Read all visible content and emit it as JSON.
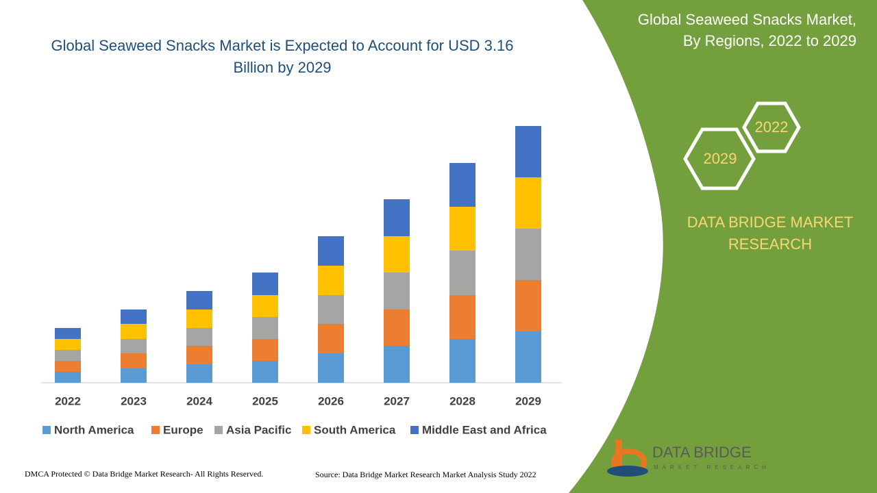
{
  "chart_data": {
    "type": "stacked-bar",
    "title": "Global Seaweed Snacks Market is Expected to Account for USD 3.16 Billion by 2029",
    "categories": [
      "2022",
      "2023",
      "2024",
      "2025",
      "2026",
      "2027",
      "2028",
      "2029"
    ],
    "series": [
      {
        "name": "North America",
        "color": "#5b9bd5",
        "values": [
          16,
          21,
          27,
          32,
          43,
          54,
          64,
          75
        ]
      },
      {
        "name": "Europe",
        "color": "#ed7d31",
        "values": [
          16,
          22,
          27,
          32,
          43,
          53,
          64,
          75
        ]
      },
      {
        "name": "Asia Pacific",
        "color": "#a5a5a5",
        "values": [
          16,
          21,
          26,
          32,
          42,
          54,
          65,
          75
        ]
      },
      {
        "name": "South America",
        "color": "#ffc000",
        "values": [
          16,
          22,
          27,
          32,
          43,
          53,
          64,
          75
        ]
      },
      {
        "name": "Middle East and Africa",
        "color": "#4472c4",
        "values": [
          16,
          21,
          27,
          33,
          43,
          54,
          64,
          75
        ]
      }
    ],
    "legend": "bottom"
  },
  "panel": {
    "title_lines": [
      "Global Seaweed Snacks Market,",
      "By Regions, 2022 to 2029"
    ],
    "hex_labels": [
      "2022",
      "2029"
    ],
    "brand_lines": [
      "DATA BRIDGE MARKET",
      "RESEARCH"
    ]
  },
  "logo": {
    "name": "DATA BRIDGE",
    "tagline": "MARKET RESEARCH"
  },
  "footer": {
    "left": "DMCA Protected © Data Bridge Market Research- All Rights Reserved.",
    "right": "Source: Data Bridge Market Research Market Analysis Study 2022"
  }
}
